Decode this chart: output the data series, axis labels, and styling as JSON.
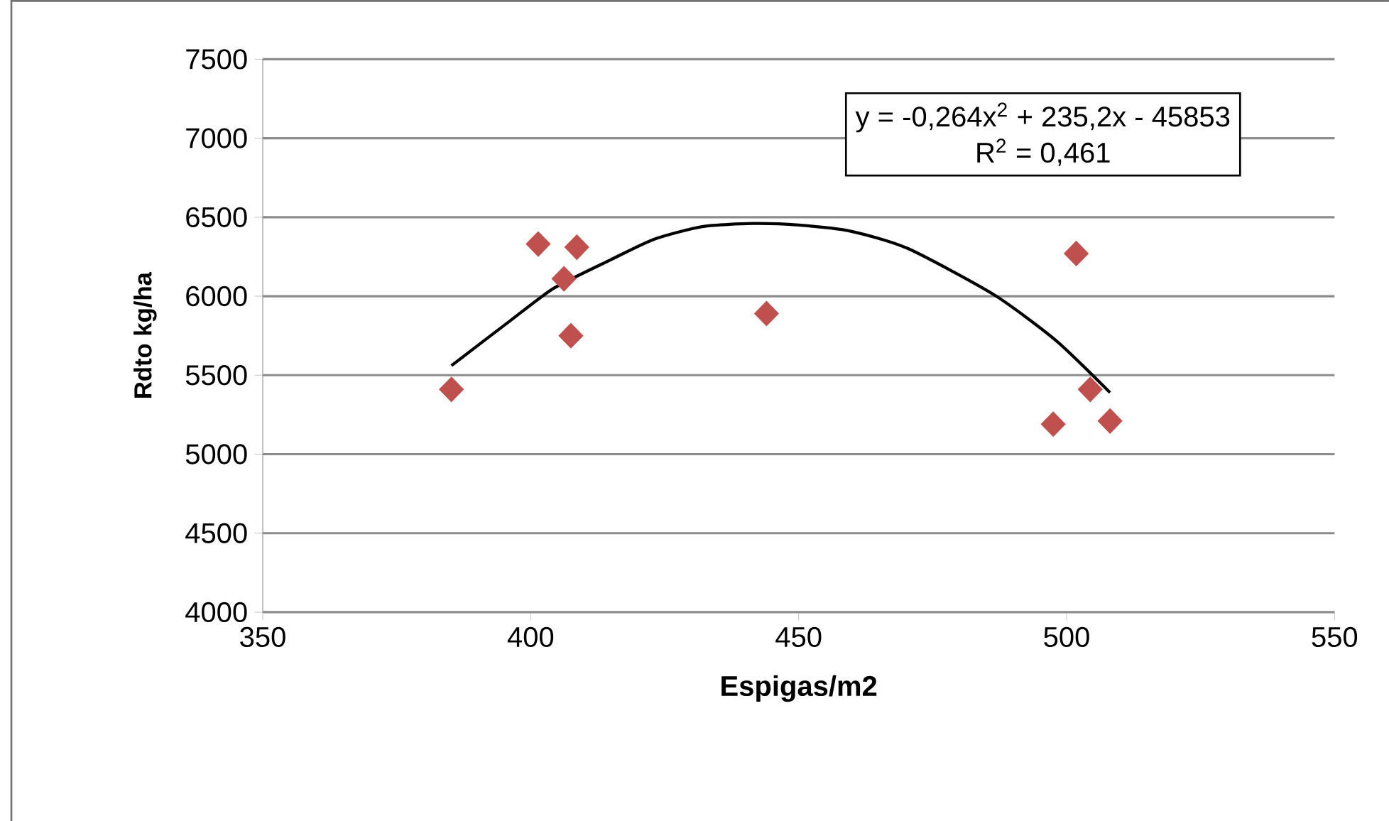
{
  "chart_data": {
    "type": "scatter",
    "xlabel": "Espigas/m2",
    "ylabel": "Rdto kg/ha",
    "xlim": [
      350,
      550
    ],
    "xticks": [
      350,
      400,
      450,
      500,
      550
    ],
    "ylim": [
      4000,
      7500
    ],
    "yticks": [
      4000,
      4500,
      5000,
      5500,
      6000,
      6500,
      7000,
      7500
    ],
    "grid": "y",
    "marker": "diamond",
    "series": [
      {
        "color": "#c0504d",
        "x": [
          385.2,
          401.4,
          408.6,
          406.2,
          407.5,
          444,
          501.8,
          497.5,
          504.4,
          508.1
        ],
        "values": [
          5410,
          6330,
          6310,
          6110,
          5750,
          5890,
          6270,
          5190,
          5410,
          5210
        ]
      },
      {
        "type": "line",
        "color": "#000000",
        "marker": "none",
        "x": [
          385.2,
          396,
          404.3,
          414.9,
          423,
          432,
          441.4,
          450,
          459.9,
          470.5,
          486.4,
          498,
          508.1
        ],
        "values": [
          5560,
          5840,
          6050,
          6230,
          6360,
          6440,
          6460,
          6450,
          6410,
          6300,
          6010,
          5720,
          5390
        ]
      }
    ],
    "annotations": [
      "y = -0,264x$^{2}$ + 235,2x - 45853",
      "R$^{2}$ = 0,461"
    ]
  }
}
